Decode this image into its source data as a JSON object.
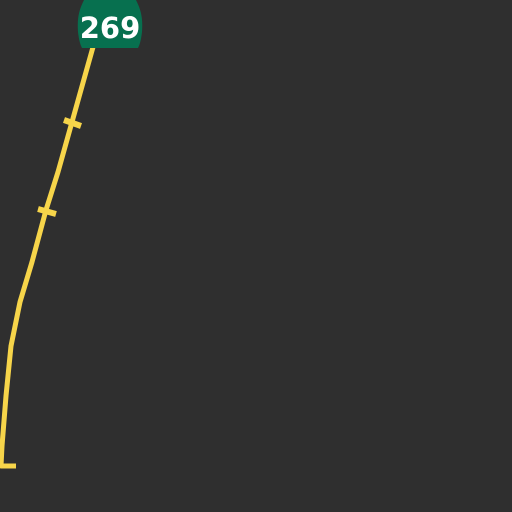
{
  "map": {
    "background_color": "#2f2f2f",
    "road": {
      "type": "highway",
      "color": "#f7d54a"
    },
    "route_shield": {
      "label": "269",
      "icon": "state-route-shield-icon",
      "color": "#07704f",
      "text_color": "#ffffff"
    }
  }
}
